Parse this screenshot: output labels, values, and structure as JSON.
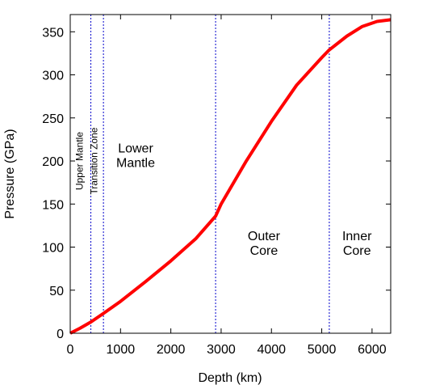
{
  "chart_data": {
    "type": "line",
    "xlabel": "Depth (km)",
    "ylabel": "Pressure (GPa)",
    "xlim": [
      0,
      6371
    ],
    "ylim": [
      0,
      370
    ],
    "xticks": [
      0,
      1000,
      2000,
      3000,
      4000,
      5000,
      6000
    ],
    "yticks": [
      0,
      50,
      100,
      150,
      200,
      250,
      300,
      350
    ],
    "line_color": "#ff0000",
    "boundary_color": "#0000cc",
    "boundaries": [
      410,
      660,
      2890,
      5150
    ],
    "series": [
      {
        "x": [
          0,
          200,
          410,
          660,
          1000,
          1500,
          2000,
          2500,
          2890,
          3000,
          3500,
          4000,
          4500,
          5000,
          5150,
          5500,
          5800,
          6100,
          6371
        ],
        "y": [
          0,
          6,
          13,
          23,
          37,
          60,
          84,
          110,
          136,
          150,
          200,
          246,
          288,
          320,
          329,
          345,
          356,
          362,
          364
        ]
      }
    ],
    "annotations": [
      {
        "text": "Upper Mantle",
        "x": 250,
        "y": 200,
        "rotation": -90
      },
      {
        "text": "Transition Zone",
        "x": 540,
        "y": 200,
        "rotation": -90
      },
      {
        "lines": [
          "Lower",
          "Mantle"
        ],
        "x": 1300,
        "y": 210
      },
      {
        "lines": [
          "Outer",
          "Core"
        ],
        "x": 3850,
        "y": 108
      },
      {
        "lines": [
          "Inner",
          "Core"
        ],
        "x": 5700,
        "y": 108
      }
    ]
  }
}
